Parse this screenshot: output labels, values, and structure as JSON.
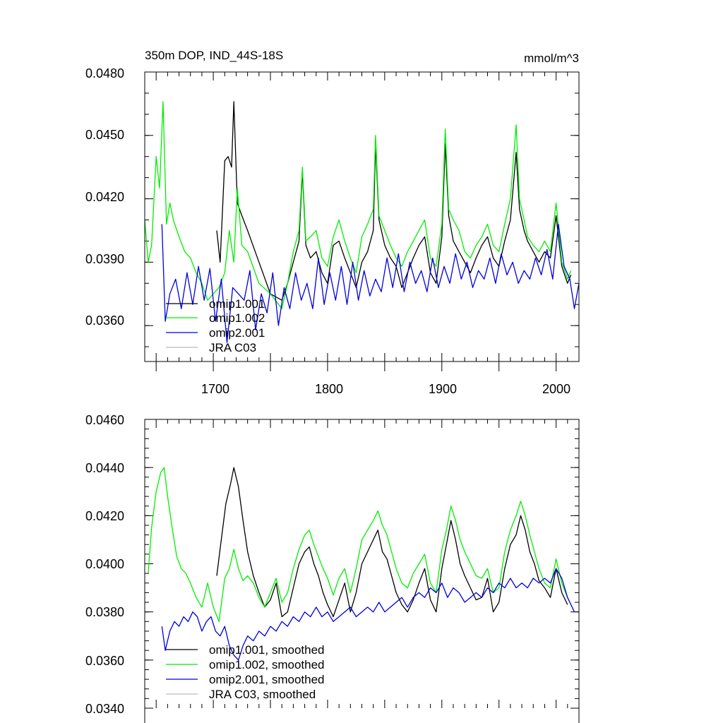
{
  "chart_data": [
    {
      "type": "line",
      "title": "350m DOP, IND_44S-18S",
      "units": "mmol/m^3",
      "xlim": [
        1640,
        2020
      ],
      "ylim": [
        0.034,
        0.048
      ],
      "yticks": [
        "0.0480",
        "0.0450",
        "0.0420",
        "0.0390",
        "0.0360"
      ],
      "xticks": [
        "1700",
        "1800",
        "1900",
        "2000"
      ],
      "legend_position": "bottom-left",
      "series": [
        {
          "name": "omip1.001",
          "color": "#000000",
          "x": [
            1703,
            1706,
            1710,
            1713,
            1716,
            1718,
            1721,
            1725,
            1730,
            1740,
            1750,
            1760,
            1765,
            1770,
            1775,
            1778,
            1781,
            1785,
            1790,
            1795,
            1800,
            1805,
            1810,
            1815,
            1820,
            1825,
            1830,
            1835,
            1840,
            1842,
            1845,
            1850,
            1855,
            1860,
            1865,
            1870,
            1875,
            1880,
            1885,
            1890,
            1895,
            1900,
            1903,
            1906,
            1910,
            1915,
            1920,
            1925,
            1930,
            1935,
            1940,
            1945,
            1950,
            1955,
            1960,
            1965,
            1968,
            1972,
            1975,
            1980,
            1985,
            1990,
            1995,
            2000,
            2005,
            2010,
            2013
          ],
          "y": [
            0.0405,
            0.039,
            0.0438,
            0.044,
            0.0435,
            0.0466,
            0.0418,
            0.0412,
            0.0405,
            0.039,
            0.0375,
            0.0372,
            0.038,
            0.039,
            0.04,
            0.0433,
            0.0398,
            0.0392,
            0.0395,
            0.0385,
            0.038,
            0.0398,
            0.04,
            0.0392,
            0.0385,
            0.0378,
            0.039,
            0.0395,
            0.0405,
            0.0446,
            0.041,
            0.0398,
            0.0392,
            0.0388,
            0.0378,
            0.0385,
            0.0392,
            0.0398,
            0.0402,
            0.0385,
            0.038,
            0.0402,
            0.0446,
            0.0412,
            0.04,
            0.0395,
            0.039,
            0.0385,
            0.0392,
            0.0398,
            0.0402,
            0.0392,
            0.0388,
            0.04,
            0.041,
            0.0442,
            0.0415,
            0.0405,
            0.04,
            0.0395,
            0.039,
            0.0395,
            0.0392,
            0.0412,
            0.0388,
            0.038,
            0.0384
          ]
        },
        {
          "name": "omip1.002",
          "color": "#00ee00",
          "x": [
            1640,
            1643,
            1646,
            1650,
            1653,
            1656,
            1659,
            1662,
            1665,
            1670,
            1675,
            1680,
            1685,
            1690,
            1695,
            1700,
            1705,
            1710,
            1714,
            1718,
            1721,
            1725,
            1730,
            1740,
            1750,
            1760,
            1765,
            1770,
            1775,
            1778,
            1781,
            1785,
            1790,
            1795,
            1800,
            1805,
            1810,
            1815,
            1820,
            1825,
            1830,
            1835,
            1840,
            1842,
            1845,
            1850,
            1855,
            1860,
            1865,
            1870,
            1875,
            1880,
            1885,
            1890,
            1895,
            1900,
            1903,
            1906,
            1910,
            1915,
            1920,
            1925,
            1930,
            1935,
            1940,
            1945,
            1950,
            1955,
            1960,
            1965,
            1968,
            1972,
            1975,
            1980,
            1985,
            1990,
            1995,
            2000,
            2005,
            2010,
            2013
          ],
          "y": [
            0.041,
            0.039,
            0.0398,
            0.044,
            0.0425,
            0.0466,
            0.0408,
            0.0418,
            0.041,
            0.0402,
            0.0395,
            0.0392,
            0.0385,
            0.038,
            0.0372,
            0.0375,
            0.0378,
            0.0385,
            0.0405,
            0.039,
            0.0425,
            0.0398,
            0.0395,
            0.038,
            0.0375,
            0.0368,
            0.038,
            0.0395,
            0.0405,
            0.0435,
            0.04,
            0.0402,
            0.0405,
            0.0392,
            0.0388,
            0.0402,
            0.041,
            0.04,
            0.0392,
            0.0385,
            0.0402,
            0.0408,
            0.0415,
            0.045,
            0.0412,
            0.0405,
            0.0398,
            0.0392,
            0.0388,
            0.0395,
            0.04,
            0.0405,
            0.041,
            0.0392,
            0.0388,
            0.0408,
            0.0453,
            0.0415,
            0.041,
            0.0405,
            0.0395,
            0.0392,
            0.0398,
            0.0402,
            0.0408,
            0.0398,
            0.0395,
            0.0408,
            0.042,
            0.0455,
            0.042,
            0.041,
            0.0402,
            0.0398,
            0.0395,
            0.04,
            0.0395,
            0.0418,
            0.039,
            0.0382,
            0.0386
          ]
        },
        {
          "name": "omip2.001",
          "color": "#0000dd",
          "x": [
            1655,
            1658,
            1662,
            1667,
            1672,
            1677,
            1682,
            1687,
            1692,
            1697,
            1702,
            1707,
            1712,
            1717,
            1722,
            1727,
            1732,
            1737,
            1742,
            1747,
            1752,
            1757,
            1762,
            1767,
            1772,
            1777,
            1782,
            1787,
            1792,
            1797,
            1802,
            1807,
            1812,
            1817,
            1822,
            1827,
            1832,
            1837,
            1842,
            1847,
            1852,
            1857,
            1862,
            1867,
            1872,
            1877,
            1882,
            1887,
            1892,
            1897,
            1902,
            1907,
            1912,
            1917,
            1922,
            1927,
            1932,
            1937,
            1942,
            1947,
            1952,
            1957,
            1962,
            1967,
            1972,
            1977,
            1982,
            1987,
            1992,
            1997,
            2002,
            2007,
            2012,
            2016,
            2020
          ],
          "y": [
            0.0408,
            0.0362,
            0.0375,
            0.0382,
            0.0368,
            0.0385,
            0.037,
            0.0388,
            0.0372,
            0.0387,
            0.0362,
            0.0382,
            0.0352,
            0.0378,
            0.0375,
            0.0372,
            0.0386,
            0.0358,
            0.0375,
            0.0366,
            0.0385,
            0.036,
            0.0378,
            0.0368,
            0.0385,
            0.0372,
            0.038,
            0.0368,
            0.0392,
            0.037,
            0.0385,
            0.0372,
            0.0388,
            0.037,
            0.039,
            0.0372,
            0.0386,
            0.0374,
            0.0382,
            0.0376,
            0.0392,
            0.0378,
            0.0394,
            0.0376,
            0.039,
            0.038,
            0.0386,
            0.0376,
            0.0392,
            0.0378,
            0.0388,
            0.038,
            0.0394,
            0.0382,
            0.039,
            0.0378,
            0.0386,
            0.0382,
            0.0392,
            0.038,
            0.0394,
            0.0384,
            0.039,
            0.038,
            0.0386,
            0.0382,
            0.0392,
            0.0384,
            0.0396,
            0.0382,
            0.0408,
            0.0388,
            0.0382,
            0.0368,
            0.038
          ]
        },
        {
          "name": "JRA C03",
          "color": "#bbbbbb",
          "x": [],
          "y": []
        }
      ]
    },
    {
      "type": "line",
      "title": "",
      "xlim": [
        1640,
        2020
      ],
      "ylim": [
        0.034,
        0.046
      ],
      "yticks": [
        "0.0460",
        "0.0440",
        "0.0420",
        "0.0400",
        "0.0380",
        "0.0360",
        "0.0340"
      ],
      "legend_position": "bottom-left",
      "series": [
        {
          "name": "omip1.001, smoothed",
          "color": "#000000",
          "x": [
            1703,
            1707,
            1711,
            1715,
            1718,
            1722,
            1726,
            1730,
            1735,
            1740,
            1745,
            1750,
            1755,
            1760,
            1765,
            1770,
            1775,
            1780,
            1784,
            1788,
            1792,
            1796,
            1800,
            1805,
            1810,
            1815,
            1820,
            1825,
            1830,
            1835,
            1840,
            1844,
            1848,
            1852,
            1856,
            1860,
            1865,
            1870,
            1875,
            1880,
            1885,
            1890,
            1895,
            1900,
            1904,
            1908,
            1912,
            1916,
            1920,
            1925,
            1930,
            1935,
            1940,
            1945,
            1950,
            1955,
            1960,
            1965,
            1969,
            1973,
            1977,
            1981,
            1985,
            1990,
            1995,
            2000,
            2005,
            2010
          ],
          "y": [
            0.0395,
            0.041,
            0.0425,
            0.0433,
            0.044,
            0.0432,
            0.0418,
            0.0405,
            0.0395,
            0.0388,
            0.0382,
            0.0385,
            0.0392,
            0.0378,
            0.038,
            0.039,
            0.04,
            0.0405,
            0.0407,
            0.04,
            0.0395,
            0.0388,
            0.0383,
            0.0378,
            0.0385,
            0.0392,
            0.038,
            0.0388,
            0.04,
            0.0405,
            0.041,
            0.0414,
            0.0405,
            0.0402,
            0.0395,
            0.0388,
            0.0383,
            0.038,
            0.0385,
            0.0392,
            0.0398,
            0.0385,
            0.038,
            0.0398,
            0.0408,
            0.0418,
            0.041,
            0.04,
            0.0395,
            0.039,
            0.0385,
            0.0386,
            0.0394,
            0.038,
            0.0384,
            0.0398,
            0.0408,
            0.0412,
            0.042,
            0.0414,
            0.0405,
            0.04,
            0.0393,
            0.039,
            0.0386,
            0.0398,
            0.0388,
            0.0383
          ]
        },
        {
          "name": "omip1.002, smoothed",
          "color": "#00ee00",
          "x": [
            1643,
            1646,
            1650,
            1654,
            1657,
            1660,
            1664,
            1668,
            1672,
            1676,
            1680,
            1685,
            1690,
            1695,
            1700,
            1705,
            1710,
            1714,
            1718,
            1722,
            1726,
            1730,
            1735,
            1740,
            1745,
            1750,
            1755,
            1760,
            1765,
            1770,
            1775,
            1780,
            1784,
            1788,
            1792,
            1796,
            1800,
            1805,
            1810,
            1815,
            1820,
            1825,
            1830,
            1835,
            1840,
            1844,
            1848,
            1852,
            1856,
            1860,
            1865,
            1870,
            1875,
            1880,
            1885,
            1890,
            1895,
            1900,
            1904,
            1908,
            1912,
            1916,
            1920,
            1925,
            1930,
            1935,
            1940,
            1945,
            1950,
            1955,
            1960,
            1965,
            1969,
            1973,
            1977,
            1981,
            1985,
            1990,
            1995,
            2000,
            2005,
            2010
          ],
          "y": [
            0.0396,
            0.0415,
            0.043,
            0.0438,
            0.044,
            0.0428,
            0.0415,
            0.0403,
            0.0398,
            0.0396,
            0.0392,
            0.0386,
            0.0382,
            0.0392,
            0.0382,
            0.0376,
            0.0394,
            0.0398,
            0.0406,
            0.0398,
            0.0393,
            0.0395,
            0.0392,
            0.0386,
            0.0382,
            0.0388,
            0.0394,
            0.0384,
            0.0388,
            0.0398,
            0.0406,
            0.0412,
            0.0414,
            0.0408,
            0.0403,
            0.0398,
            0.0394,
            0.0387,
            0.0394,
            0.0398,
            0.0388,
            0.0398,
            0.041,
            0.0414,
            0.0418,
            0.0422,
            0.0416,
            0.0412,
            0.0405,
            0.0398,
            0.0392,
            0.039,
            0.0396,
            0.04,
            0.0404,
            0.0392,
            0.0388,
            0.0406,
            0.0414,
            0.0424,
            0.0418,
            0.041,
            0.0405,
            0.04,
            0.0395,
            0.0394,
            0.0398,
            0.0388,
            0.039,
            0.0405,
            0.0414,
            0.042,
            0.0426,
            0.042,
            0.0412,
            0.0405,
            0.0398,
            0.0392,
            0.039,
            0.0402,
            0.0392,
            0.0386
          ]
        },
        {
          "name": "omip2.001, smoothed",
          "color": "#0000dd",
          "x": [
            1655,
            1658,
            1662,
            1666,
            1670,
            1674,
            1678,
            1682,
            1686,
            1690,
            1694,
            1698,
            1702,
            1706,
            1710,
            1714,
            1718,
            1722,
            1726,
            1730,
            1735,
            1740,
            1745,
            1750,
            1755,
            1760,
            1765,
            1770,
            1775,
            1780,
            1785,
            1790,
            1795,
            1800,
            1805,
            1810,
            1815,
            1820,
            1825,
            1830,
            1835,
            1840,
            1845,
            1850,
            1855,
            1860,
            1865,
            1870,
            1875,
            1880,
            1885,
            1890,
            1895,
            1900,
            1905,
            1910,
            1915,
            1920,
            1925,
            1930,
            1935,
            1940,
            1945,
            1950,
            1955,
            1960,
            1965,
            1970,
            1975,
            1980,
            1985,
            1990,
            1995,
            2000,
            2005,
            2010,
            2016
          ],
          "y": [
            0.0374,
            0.0364,
            0.0372,
            0.0376,
            0.0374,
            0.0378,
            0.0376,
            0.038,
            0.0378,
            0.0372,
            0.0376,
            0.0378,
            0.0372,
            0.037,
            0.0374,
            0.0366,
            0.0362,
            0.036,
            0.0366,
            0.037,
            0.0368,
            0.0372,
            0.037,
            0.0374,
            0.0372,
            0.0376,
            0.0374,
            0.0378,
            0.0376,
            0.038,
            0.0378,
            0.0382,
            0.0378,
            0.038,
            0.0376,
            0.0378,
            0.038,
            0.0382,
            0.0378,
            0.038,
            0.0382,
            0.038,
            0.0384,
            0.038,
            0.0382,
            0.0384,
            0.0386,
            0.0382,
            0.0386,
            0.0388,
            0.0386,
            0.039,
            0.0388,
            0.0392,
            0.0386,
            0.039,
            0.0388,
            0.0384,
            0.0386,
            0.0388,
            0.0386,
            0.039,
            0.0388,
            0.0392,
            0.039,
            0.0394,
            0.039,
            0.0392,
            0.039,
            0.0394,
            0.0392,
            0.0394,
            0.0392,
            0.0398,
            0.0394,
            0.0386,
            0.038
          ]
        },
        {
          "name": "JRA C03, smoothed",
          "color": "#bbbbbb",
          "x": [],
          "y": []
        }
      ]
    }
  ]
}
